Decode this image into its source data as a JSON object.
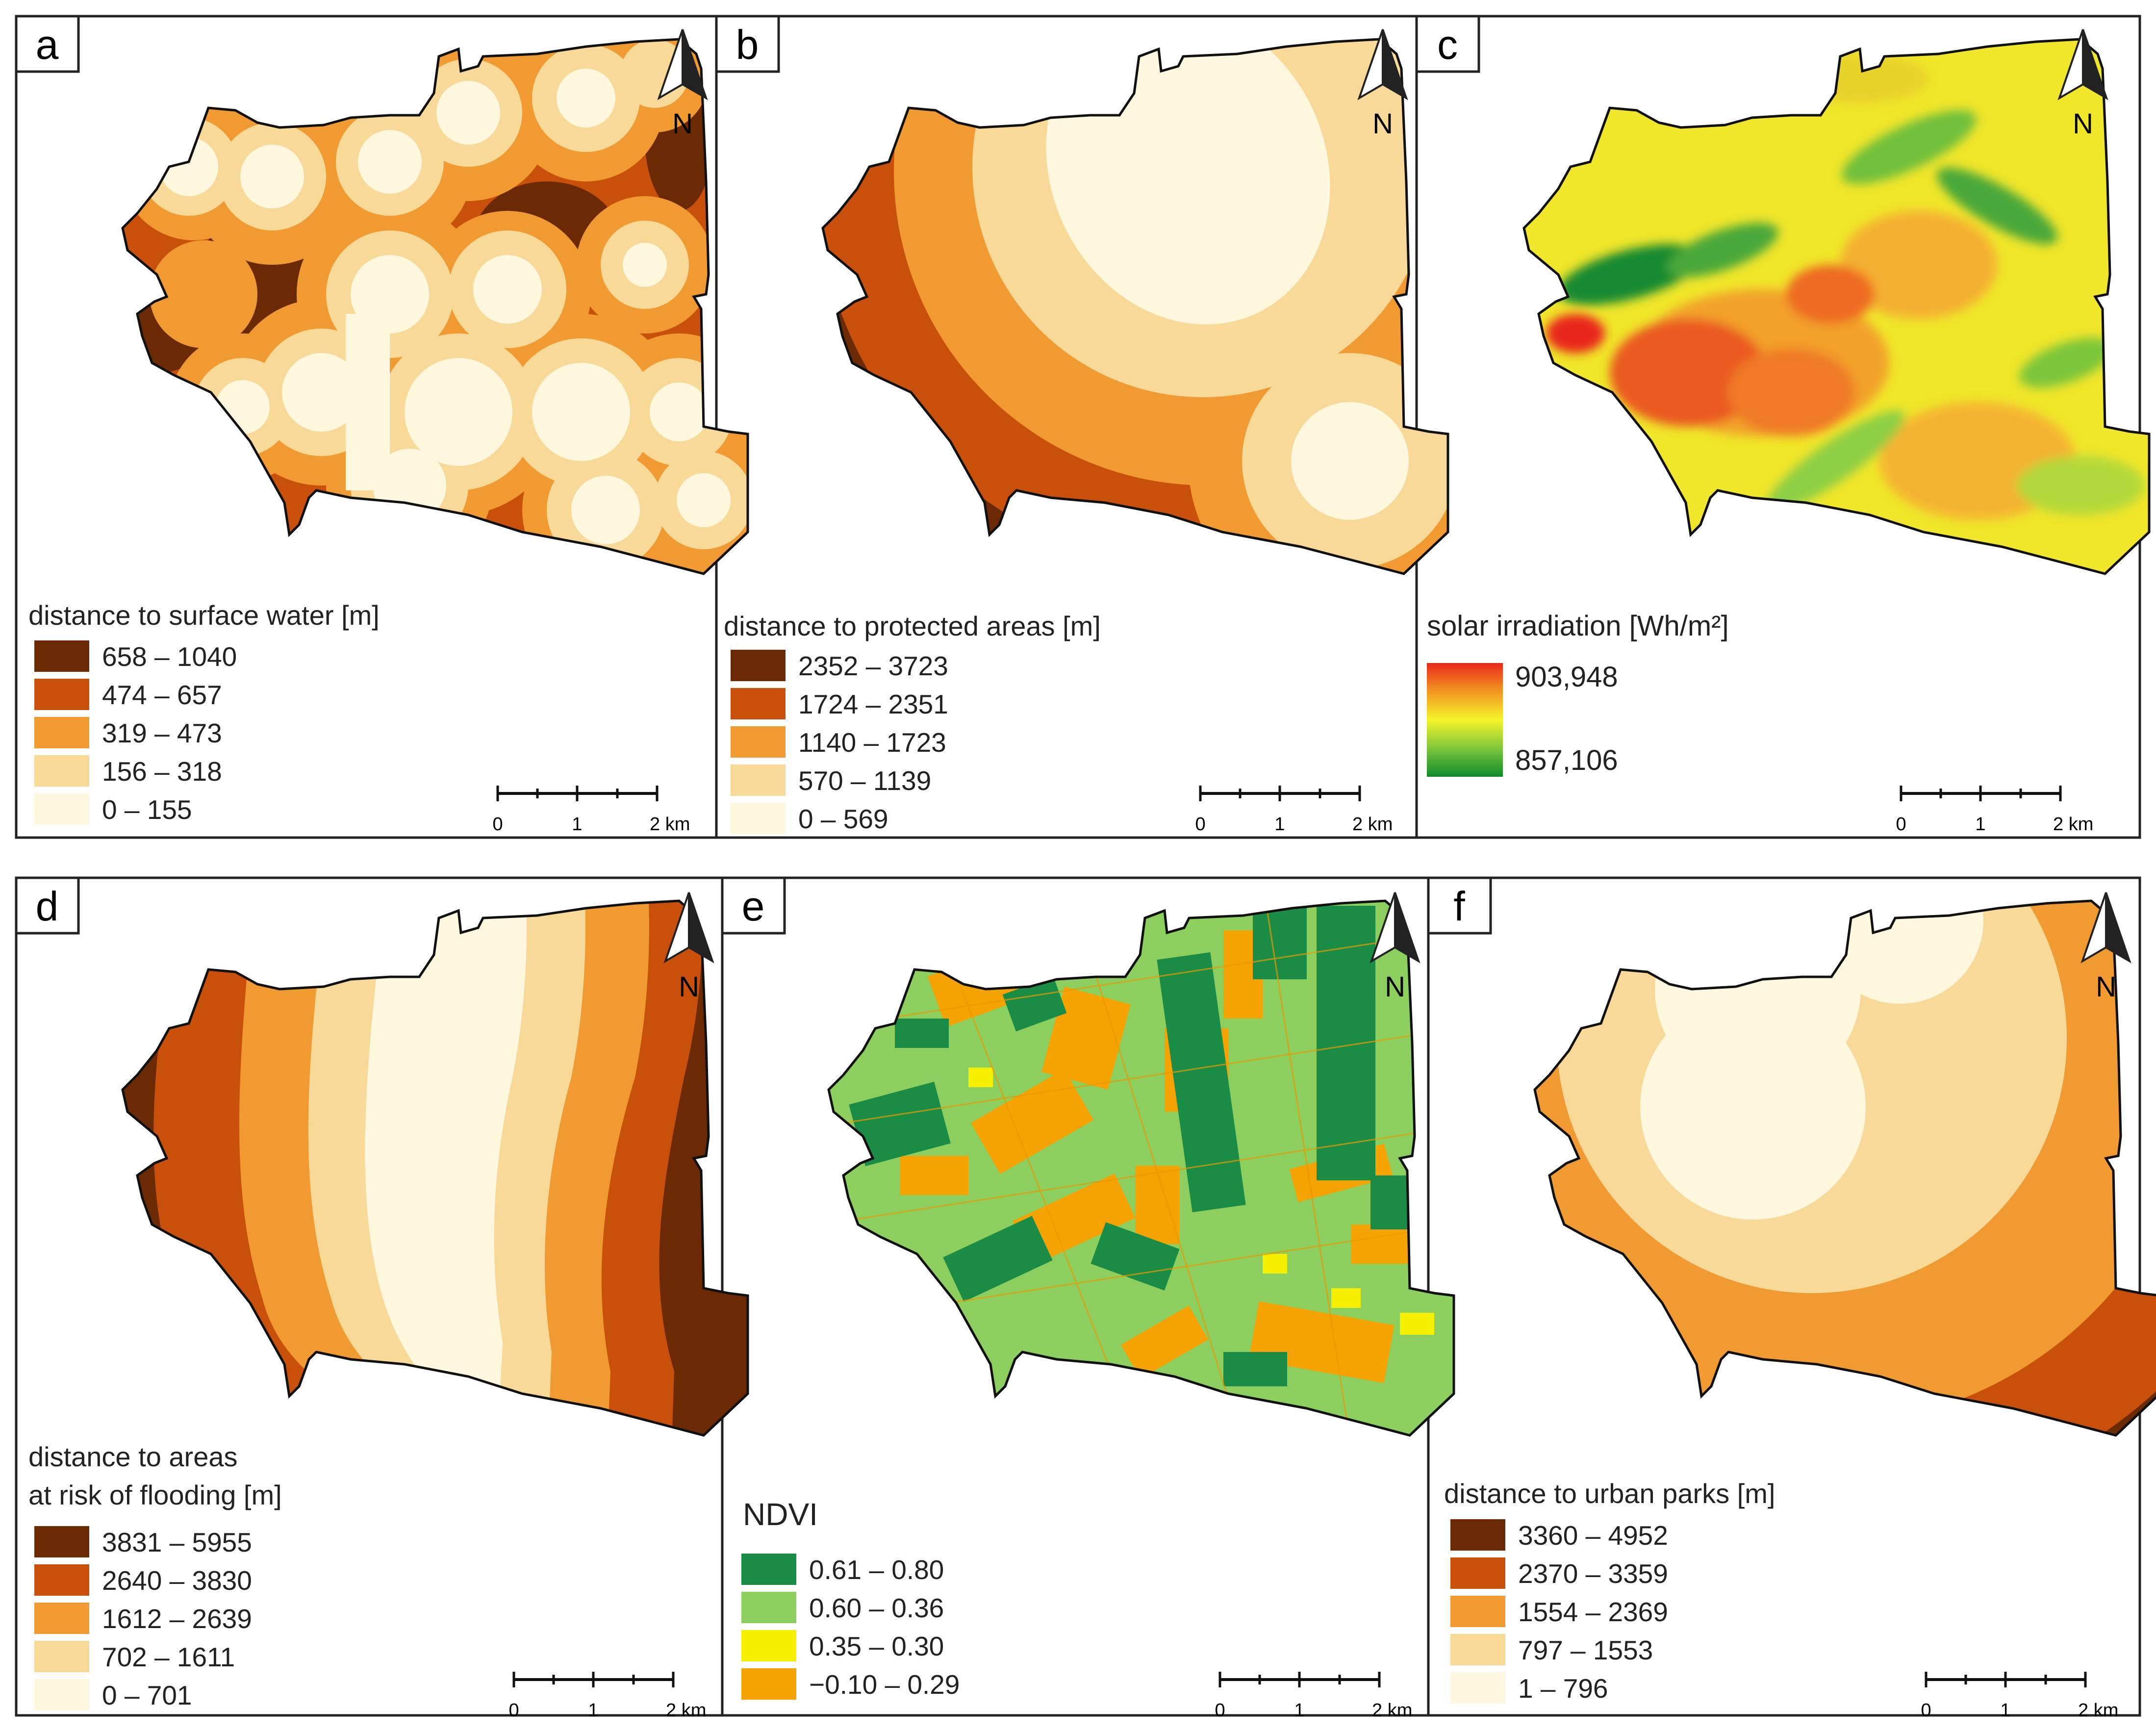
{
  "colors": {
    "ramp_dark": "#6b2a04",
    "ramp_brown": "#c8500a",
    "ramp_orange": "#f29a32",
    "ramp_tan": "#f9d998",
    "ramp_cream": "#fff8de",
    "solar_high": "#e8281a",
    "solar_mid": "#f5f52a",
    "solar_low": "#0f8a2c",
    "ndvi_1": "#1a8c46",
    "ndvi_2": "#8ccf5e",
    "ndvi_3": "#f5f000",
    "ndvi_4": "#f5a300"
  },
  "north_arrow_label": "N",
  "scalebar": {
    "ticks": [
      "0",
      "1",
      "2 km"
    ]
  },
  "panels": [
    {
      "letter": "a",
      "legend_title": "distance to surface water [m]",
      "classes": [
        "658 – 1040",
        "474 – 657",
        "319 – 473",
        "156 – 318",
        "0 – 155"
      ]
    },
    {
      "letter": "b",
      "legend_title": "distance to protected areas [m]",
      "classes": [
        "2352 – 3723",
        "1724 – 2351",
        "1140 – 1723",
        "570 – 1139",
        "0 – 569"
      ]
    },
    {
      "letter": "c",
      "legend_title": "solar irradiation [Wh/m²]",
      "gradient_max": "903,948",
      "gradient_min": "857,106"
    },
    {
      "letter": "d",
      "legend_title_line1": "distance to areas",
      "legend_title_line2": "at risk of flooding [m]",
      "classes": [
        "3831 – 5955",
        "2640 – 3830",
        "1612 – 2639",
        "702 – 1611",
        "0 – 701"
      ]
    },
    {
      "letter": "e",
      "legend_title": "NDVI",
      "classes": [
        "0.61 – 0.80",
        "0.60 – 0.36",
        "0.35 – 0.30",
        "−0.10 – 0.29"
      ]
    },
    {
      "letter": "f",
      "legend_title": "distance to urban parks [m]",
      "classes": [
        "3360 – 4952",
        "2370 – 3359",
        "1554 – 2369",
        "797 – 1553",
        "1 – 796"
      ]
    }
  ]
}
